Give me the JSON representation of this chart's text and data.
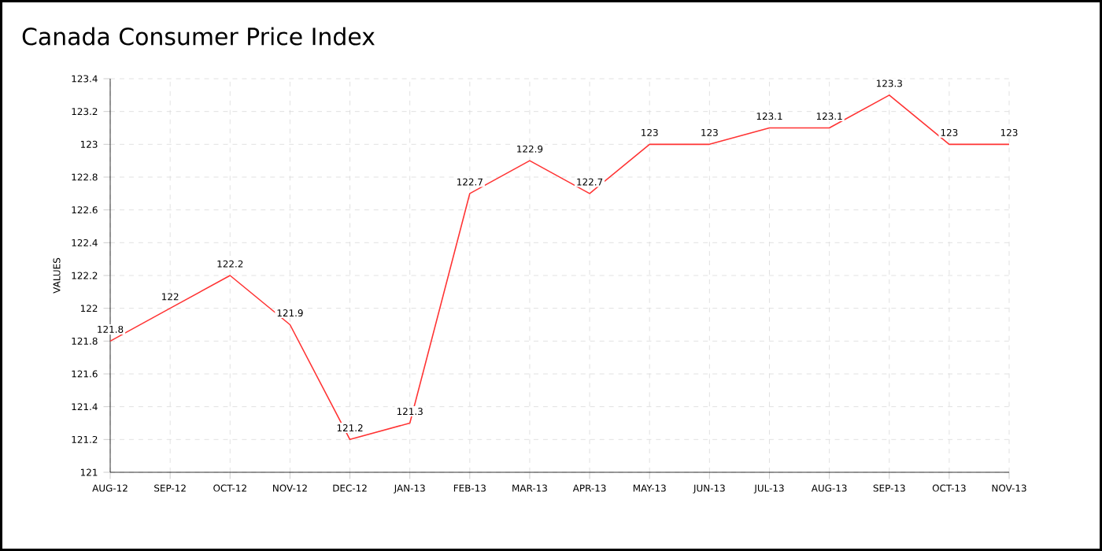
{
  "chart_data": {
    "type": "line",
    "title": "Canada Consumer Price Index",
    "ylabel": "VALUES",
    "categories": [
      "AUG-12",
      "SEP-12",
      "OCT-12",
      "NOV-12",
      "DEC-12",
      "JAN-13",
      "FEB-13",
      "MAR-13",
      "APR-13",
      "MAY-13",
      "JUN-13",
      "JUL-13",
      "AUG-13",
      "SEP-13",
      "OCT-13",
      "NOV-13"
    ],
    "series": [
      {
        "color": "#ff3333",
        "values": [
          121.8,
          122,
          122.2,
          121.9,
          121.2,
          121.3,
          122.7,
          122.9,
          122.7,
          123,
          123,
          123.1,
          123.1,
          123.3,
          123,
          123
        ]
      }
    ],
    "ylim": [
      121,
      123.4
    ],
    "yticks": [
      121,
      121.2,
      121.4,
      121.6,
      121.8,
      122,
      122.2,
      122.4,
      122.6,
      122.8,
      123,
      123.2,
      123.4
    ],
    "grid": true,
    "data_labels": true,
    "marker": "none",
    "line_style": "solid"
  }
}
